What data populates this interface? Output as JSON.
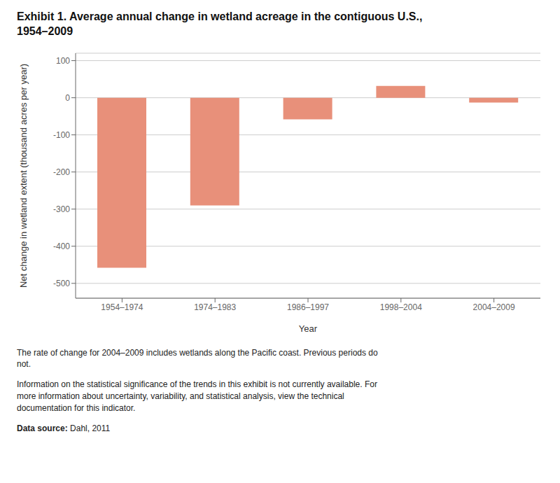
{
  "chart_data": {
    "type": "bar",
    "title": "Exhibit 1. Average annual change in wetland acreage in the contiguous U.S.,\n1954–2009",
    "categories": [
      "1954–1974",
      "1974–1983",
      "1986–1997",
      "1998–2004",
      "2004–2009"
    ],
    "values": [
      -458,
      -290,
      -58,
      32,
      -13
    ],
    "color": "#E8907A",
    "xlabel": "Year",
    "ylabel": "Net change in wetland extent (thousand acres per year)",
    "ylim": [
      -540,
      120
    ],
    "yticks": [
      100,
      0,
      -100,
      -200,
      -300,
      -400,
      -500
    ],
    "grid": true,
    "annotations": [
      "The rate of change for 2004–2009 includes wetlands along the Pacific coast. Previous periods do\nnot.",
      "Information on the statistical significance of the trends in this exhibit is not currently available. For\nmore information about uncertainty, variability, and statistical analysis, view the technical\ndocumentation for this indicator.",
      "Data source: Dahl, 2011"
    ]
  }
}
